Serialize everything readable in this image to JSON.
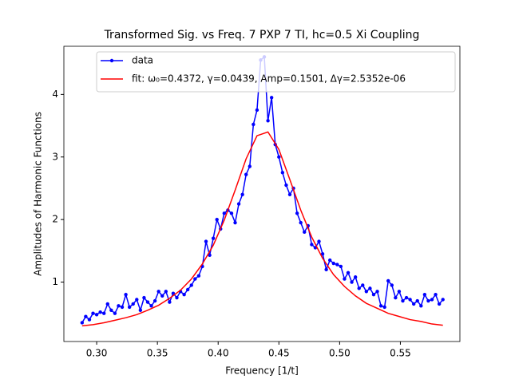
{
  "chart_data": {
    "type": "line",
    "title": "Transformed Sig. vs Freq. 7 PXP 7 TI, hc=0.5 Xi Coupling",
    "x_label": "Frequency [1/t]",
    "y_label": "Amplitudes of Harmonic Functions",
    "xlim": [
      0.273,
      0.599
    ],
    "ylim": [
      0.05,
      4.77
    ],
    "xticks": [
      {
        "value": 0.3,
        "label": "0.30"
      },
      0.35,
      {
        "value": 0.4,
        "label": "0.40"
      },
      0.45,
      {
        "value": 0.5,
        "label": "0.50"
      },
      0.55
    ],
    "yticks": [
      1,
      2,
      3,
      4
    ],
    "legend": "upper right",
    "series": [
      {
        "name": "data",
        "color": "#0000ff",
        "marker": true,
        "x": [
          0.288,
          0.291,
          0.294,
          0.297,
          0.3,
          0.303,
          0.306,
          0.309,
          0.312,
          0.315,
          0.318,
          0.321,
          0.324,
          0.327,
          0.33,
          0.333,
          0.336,
          0.339,
          0.342,
          0.345,
          0.348,
          0.351,
          0.354,
          0.357,
          0.36,
          0.363,
          0.366,
          0.369,
          0.372,
          0.375,
          0.378,
          0.381,
          0.384,
          0.387,
          0.39,
          0.393,
          0.396,
          0.399,
          0.402,
          0.405,
          0.408,
          0.411,
          0.414,
          0.417,
          0.42,
          0.423,
          0.426,
          0.429,
          0.432,
          0.435,
          0.438,
          0.441,
          0.444,
          0.447,
          0.45,
          0.453,
          0.456,
          0.459,
          0.462,
          0.465,
          0.468,
          0.471,
          0.474,
          0.477,
          0.48,
          0.483,
          0.486,
          0.489,
          0.492,
          0.495,
          0.498,
          0.501,
          0.504,
          0.507,
          0.51,
          0.513,
          0.516,
          0.519,
          0.522,
          0.525,
          0.528,
          0.531,
          0.534,
          0.537,
          0.54,
          0.543,
          0.546,
          0.549,
          0.552,
          0.555,
          0.558,
          0.561,
          0.564,
          0.567,
          0.57,
          0.573,
          0.576,
          0.579,
          0.582,
          0.585
        ],
        "values": [
          0.35,
          0.45,
          0.4,
          0.5,
          0.48,
          0.52,
          0.5,
          0.65,
          0.55,
          0.5,
          0.62,
          0.6,
          0.8,
          0.6,
          0.65,
          0.72,
          0.55,
          0.75,
          0.68,
          0.62,
          0.7,
          0.85,
          0.78,
          0.85,
          0.68,
          0.82,
          0.75,
          0.85,
          0.8,
          0.88,
          0.95,
          1.05,
          1.1,
          1.25,
          1.65,
          1.43,
          1.7,
          2.0,
          1.85,
          2.1,
          2.15,
          2.1,
          1.95,
          2.25,
          2.4,
          2.72,
          2.85,
          3.52,
          3.75,
          4.55,
          4.6,
          3.58,
          3.95,
          3.2,
          3.0,
          2.75,
          2.55,
          2.4,
          2.5,
          2.1,
          1.95,
          1.8,
          1.9,
          1.6,
          1.55,
          1.65,
          1.45,
          1.2,
          1.35,
          1.3,
          1.28,
          1.25,
          1.05,
          1.15,
          1.0,
          1.08,
          0.9,
          0.95,
          0.85,
          0.9,
          0.8,
          0.85,
          0.62,
          0.6,
          1.02,
          0.95,
          0.75,
          0.85,
          0.7,
          0.75,
          0.72,
          0.65,
          0.7,
          0.62,
          0.8,
          0.7,
          0.72,
          0.8,
          0.65,
          0.72
        ]
      },
      {
        "name": "fit: ω₀=0.4372, γ=0.0439, Amp=0.1501, Δγ=2.5352e-06",
        "color": "#ff0000",
        "marker": false,
        "x": [
          0.288,
          0.297,
          0.306,
          0.315,
          0.324,
          0.333,
          0.342,
          0.351,
          0.36,
          0.369,
          0.378,
          0.387,
          0.396,
          0.405,
          0.414,
          0.423,
          0.432,
          0.441,
          0.45,
          0.459,
          0.468,
          0.477,
          0.486,
          0.495,
          0.504,
          0.513,
          0.522,
          0.531,
          0.54,
          0.549,
          0.558,
          0.567,
          0.576,
          0.585
        ],
        "values": [
          0.3,
          0.32,
          0.35,
          0.39,
          0.43,
          0.48,
          0.55,
          0.63,
          0.74,
          0.87,
          1.05,
          1.29,
          1.59,
          1.99,
          2.47,
          2.97,
          3.34,
          3.4,
          3.12,
          2.64,
          2.15,
          1.72,
          1.38,
          1.12,
          0.93,
          0.78,
          0.66,
          0.58,
          0.5,
          0.45,
          0.4,
          0.37,
          0.33,
          0.31
        ]
      }
    ]
  }
}
